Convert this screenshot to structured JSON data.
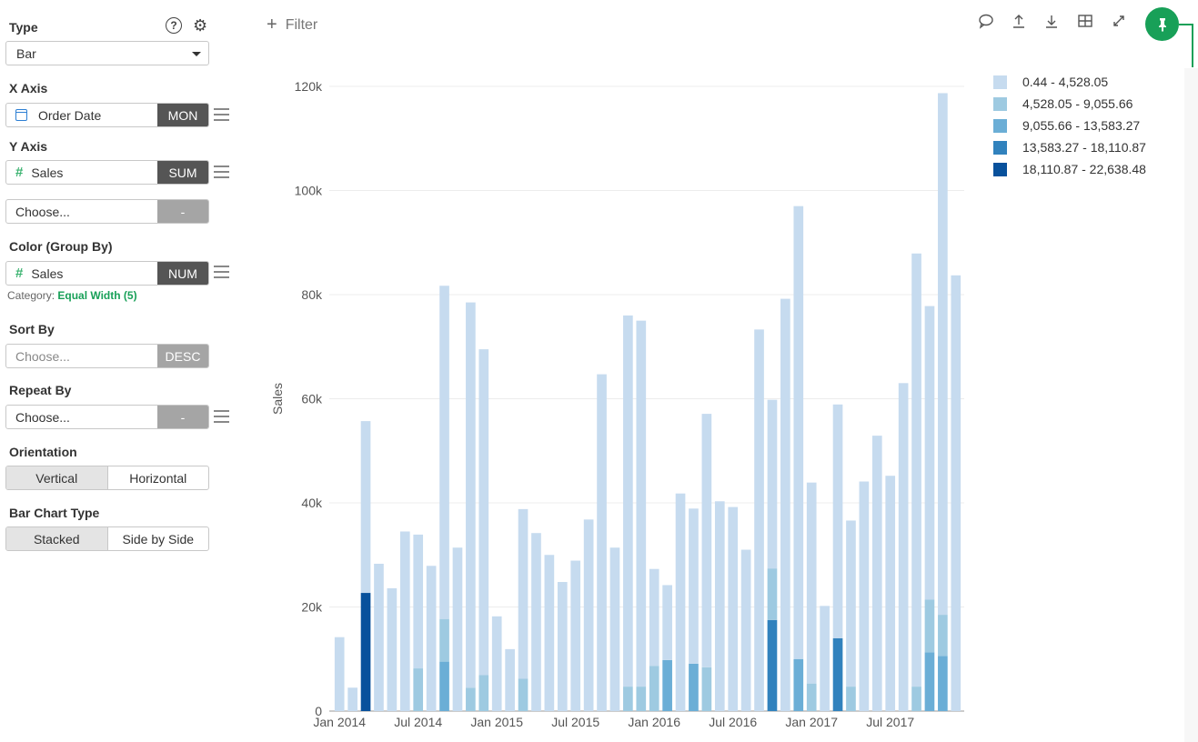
{
  "sidebar": {
    "type_label": "Type",
    "type_value": "Bar",
    "x_axis_label": "X Axis",
    "x_field": "Order Date",
    "x_agg": "MON",
    "y_axis_label": "Y Axis",
    "y_field": "Sales",
    "y_agg": "SUM",
    "y2_placeholder": "Choose...",
    "y2_agg": "-",
    "color_label": "Color (Group By)",
    "color_field": "Sales",
    "color_agg": "NUM",
    "category_prefix": "Category:",
    "category_value": "Equal Width (5)",
    "sort_label": "Sort By",
    "sort_placeholder": "Choose...",
    "sort_agg": "DESC",
    "repeat_label": "Repeat By",
    "repeat_placeholder": "Choose...",
    "repeat_agg": "-",
    "orientation_label": "Orientation",
    "orientation_options": [
      "Vertical",
      "Horizontal"
    ],
    "bartype_label": "Bar Chart Type",
    "bartype_options": [
      "Stacked",
      "Side by Side"
    ]
  },
  "toolbar": {
    "filter_label": "Filter"
  },
  "colors": {
    "accent": "#18a058",
    "buckets": [
      "#c6dbef",
      "#9ecae1",
      "#6baed6",
      "#3182bd",
      "#08519c"
    ]
  },
  "chart_data": {
    "type": "bar",
    "stacked": true,
    "ylabel": "Sales",
    "ylim": [
      0,
      120000
    ],
    "y_ticks": [
      "0",
      "20k",
      "40k",
      "60k",
      "80k",
      "100k",
      "120k"
    ],
    "x_tick_labels": [
      {
        "label": "Jan 2014",
        "index": 0
      },
      {
        "label": "Jul 2014",
        "index": 6
      },
      {
        "label": "Jan 2015",
        "index": 12
      },
      {
        "label": "Jul 2015",
        "index": 18
      },
      {
        "label": "Jan 2016",
        "index": 24
      },
      {
        "label": "Jul 2016",
        "index": 30
      },
      {
        "label": "Jan 2017",
        "index": 36
      },
      {
        "label": "Jul 2017",
        "index": 42
      }
    ],
    "legend": [
      "0.44 - 4,528.05",
      "4,528.05 - 9,055.66",
      "9,055.66 - 13,583.27",
      "13,583.27 - 18,110.87",
      "18,110.87 - 22,638.48"
    ],
    "series": [
      {
        "name": "0.44 - 4,528.05",
        "values": [
          14200,
          4500,
          33000,
          28300,
          23600,
          34500,
          25700,
          27900,
          64000,
          31400,
          74000,
          62600,
          18200,
          11900,
          32600,
          34200,
          30000,
          24800,
          28900,
          36800,
          64700,
          31400,
          71300,
          70300,
          18600,
          14400,
          41800,
          29800,
          48700,
          40300,
          39200,
          31000,
          73300,
          32400,
          79200,
          87000,
          38600,
          20200,
          44900,
          31900,
          44100,
          52900,
          45200,
          63000,
          83200,
          56400,
          100200,
          83700
        ]
      },
      {
        "name": "4,528.05 - 9,055.66",
        "values": [
          0,
          0,
          0,
          0,
          0,
          0,
          8200,
          0,
          8200,
          0,
          4500,
          6900,
          0,
          0,
          6200,
          0,
          0,
          0,
          0,
          0,
          0,
          0,
          4700,
          4700,
          8700,
          0,
          0,
          0,
          8400,
          0,
          0,
          0,
          0,
          9900,
          0,
          0,
          5300,
          0,
          0,
          4700,
          0,
          0,
          0,
          0,
          4700,
          10100,
          7900,
          0
        ]
      },
      {
        "name": "9,055.66 - 13,583.27",
        "values": [
          0,
          0,
          0,
          0,
          0,
          0,
          0,
          0,
          9500,
          0,
          0,
          0,
          0,
          0,
          0,
          0,
          0,
          0,
          0,
          0,
          0,
          0,
          0,
          0,
          0,
          9800,
          0,
          9100,
          0,
          0,
          0,
          0,
          0,
          0,
          0,
          10000,
          0,
          0,
          0,
          0,
          0,
          0,
          0,
          0,
          0,
          11300,
          10600,
          0
        ]
      },
      {
        "name": "13,583.27 - 18,110.87",
        "values": [
          0,
          0,
          0,
          0,
          0,
          0,
          0,
          0,
          0,
          0,
          0,
          0,
          0,
          0,
          0,
          0,
          0,
          0,
          0,
          0,
          0,
          0,
          0,
          0,
          0,
          0,
          0,
          0,
          0,
          0,
          0,
          0,
          0,
          17500,
          0,
          0,
          0,
          0,
          14000,
          0,
          0,
          0,
          0,
          0,
          0,
          0,
          0,
          0
        ]
      },
      {
        "name": "18,110.87 - 22,638.48",
        "values": [
          0,
          0,
          22700,
          0,
          0,
          0,
          0,
          0,
          0,
          0,
          0,
          0,
          0,
          0,
          0,
          0,
          0,
          0,
          0,
          0,
          0,
          0,
          0,
          0,
          0,
          0,
          0,
          0,
          0,
          0,
          0,
          0,
          0,
          0,
          0,
          0,
          0,
          0,
          0,
          0,
          0,
          0,
          0,
          0,
          0,
          0,
          0,
          0
        ]
      }
    ]
  }
}
